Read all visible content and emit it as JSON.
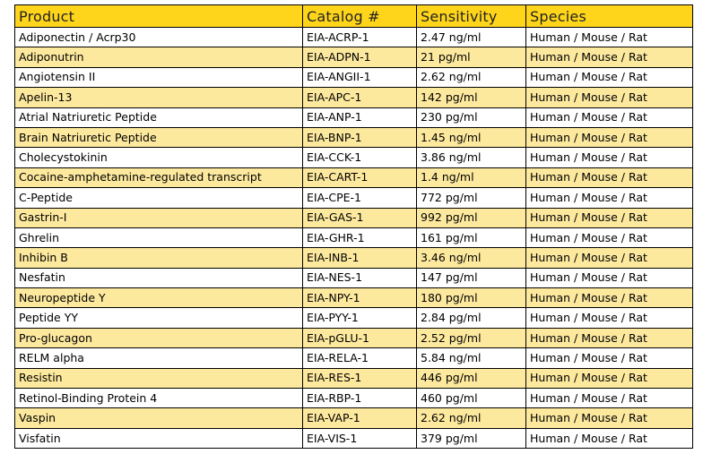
{
  "colors": {
    "header_bg": "#ffd51b",
    "stripe_bg": "#fde99e",
    "row_bg": "#ffffff",
    "border": "#000000"
  },
  "table": {
    "headers": [
      "Product",
      "Catalog #",
      "Sensitivity",
      "Species"
    ],
    "rows": [
      [
        "Adiponectin / Acrp30",
        "EIA-ACRP-1",
        "2.47 ng/ml",
        "Human / Mouse / Rat"
      ],
      [
        "Adiponutrin",
        "EIA-ADPN-1",
        "21 pg/ml",
        "Human / Mouse / Rat"
      ],
      [
        "Angiotensin II",
        "EIA-ANGII-1",
        "2.62 ng/ml",
        "Human / Mouse / Rat"
      ],
      [
        "Apelin-13",
        "EIA-APC-1",
        "142 pg/ml",
        "Human / Mouse / Rat"
      ],
      [
        "Atrial Natriuretic Peptide",
        "EIA-ANP-1",
        "230 pg/ml",
        "Human / Mouse / Rat"
      ],
      [
        "Brain Natriuretic Peptide",
        "EIA-BNP-1",
        "1.45 ng/ml",
        "Human / Mouse / Rat"
      ],
      [
        "Cholecystokinin",
        "EIA-CCK-1",
        "3.86 ng/ml",
        "Human / Mouse / Rat"
      ],
      [
        "Cocaine-amphetamine-regulated transcript",
        "EIA-CART-1",
        "1.4 ng/ml",
        "Human / Mouse / Rat"
      ],
      [
        "C-Peptide",
        "EIA-CPE-1",
        "772 pg/ml",
        "Human / Mouse / Rat"
      ],
      [
        "Gastrin-I",
        "EIA-GAS-1",
        "992 pg/ml",
        "Human / Mouse / Rat"
      ],
      [
        "Ghrelin",
        "EIA-GHR-1",
        "161 pg/ml",
        "Human / Mouse / Rat"
      ],
      [
        "Inhibin B",
        "EIA-INB-1",
        "3.46 ng/ml",
        "Human / Mouse / Rat"
      ],
      [
        "Nesfatin",
        "EIA-NES-1",
        "147 pg/ml",
        "Human / Mouse / Rat"
      ],
      [
        "Neuropeptide Y",
        "EIA-NPY-1",
        "180 pg/ml",
        "Human / Mouse / Rat"
      ],
      [
        "Peptide YY",
        "EIA-PYY-1",
        "2.84 pg/ml",
        "Human / Mouse / Rat"
      ],
      [
        "Pro-glucagon",
        "EIA-pGLU-1",
        "2.52 pg/ml",
        "Human / Mouse / Rat"
      ],
      [
        "RELM alpha",
        "EIA-RELA-1",
        "5.84 ng/ml",
        "Human / Mouse / Rat"
      ],
      [
        "Resistin",
        "EIA-RES-1",
        "446 pg/ml",
        "Human / Mouse / Rat"
      ],
      [
        "Retinol-Binding Protein 4",
        "EIA-RBP-1",
        "460 pg/ml",
        "Human / Mouse / Rat"
      ],
      [
        "Vaspin",
        "EIA-VAP-1",
        "2.62 ng/ml",
        "Human / Mouse / Rat"
      ],
      [
        "Visfatin",
        "EIA-VIS-1",
        "379 pg/ml",
        "Human / Mouse / Rat"
      ]
    ]
  }
}
